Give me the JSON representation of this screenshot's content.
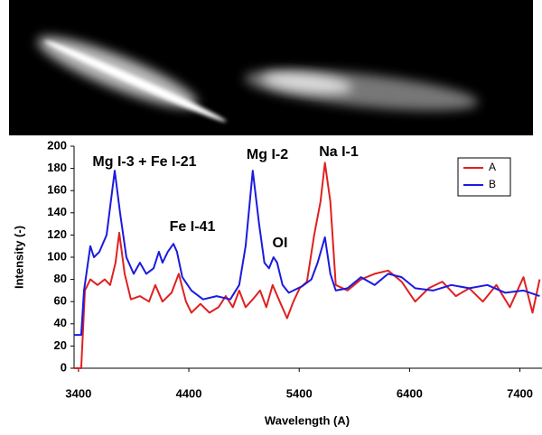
{
  "chart_data": {
    "type": "line",
    "x_label": "Wavelength (A)",
    "y_label": "Intensity (-)",
    "xlim": [
      3360,
      7600
    ],
    "xticks": [
      3400,
      4400,
      5400,
      6400,
      7400
    ],
    "ylim": [
      0,
      200
    ],
    "yticks": [
      0,
      20,
      40,
      60,
      80,
      100,
      120,
      140,
      160,
      180,
      200
    ],
    "annotations": [
      "Mg I-3 + Fe I-21",
      "Fe I-41",
      "Mg I-2",
      "OI",
      "Na I-1"
    ],
    "legend": "upper right",
    "series": [
      {
        "name": "A",
        "color": "#e02020",
        "x": [
          3360,
          3425,
          3458,
          3507,
          3573,
          3638,
          3687,
          3736,
          3769,
          3818,
          3875,
          3957,
          4039,
          4096,
          4161,
          4243,
          4309,
          4374,
          4423,
          4505,
          4587,
          4669,
          4734,
          4799,
          4856,
          4914,
          4979,
          5045,
          5102,
          5159,
          5224,
          5290,
          5347,
          5404,
          5470,
          5536,
          5593,
          5633,
          5682,
          5731,
          5838,
          5960,
          6083,
          6206,
          6328,
          6451,
          6573,
          6696,
          6819,
          6941,
          7064,
          7187,
          7309,
          7432,
          7514,
          7579
        ],
        "values": [
          0,
          0,
          70,
          80,
          75,
          80,
          75,
          95,
          122,
          85,
          62,
          65,
          60,
          75,
          60,
          68,
          85,
          60,
          50,
          58,
          50,
          55,
          65,
          55,
          70,
          55,
          62,
          70,
          55,
          75,
          60,
          45,
          60,
          72,
          78,
          120,
          150,
          185,
          150,
          75,
          70,
          80,
          85,
          88,
          78,
          60,
          72,
          78,
          65,
          72,
          60,
          75,
          55,
          82,
          50,
          80
        ]
      },
      {
        "name": "B",
        "color": "#1a1ae0",
        "x": [
          3360,
          3425,
          3450,
          3507,
          3540,
          3590,
          3655,
          3728,
          3777,
          3834,
          3900,
          3957,
          4014,
          4080,
          4129,
          4161,
          4210,
          4260,
          4292,
          4341,
          4423,
          4529,
          4652,
          4775,
          4856,
          4914,
          4979,
          5036,
          5085,
          5126,
          5167,
          5200,
          5249,
          5306,
          5429,
          5510,
          5567,
          5633,
          5682,
          5731,
          5838,
          5960,
          6083,
          6206,
          6328,
          6451,
          6614,
          6778,
          6941,
          7105,
          7268,
          7432,
          7579
        ],
        "values": [
          30,
          30,
          70,
          110,
          100,
          105,
          120,
          178,
          140,
          100,
          85,
          95,
          85,
          90,
          105,
          95,
          105,
          112,
          105,
          82,
          70,
          62,
          65,
          62,
          75,
          110,
          178,
          130,
          95,
          90,
          100,
          95,
          75,
          68,
          74,
          80,
          95,
          118,
          85,
          70,
          72,
          82,
          75,
          85,
          82,
          72,
          70,
          75,
          72,
          75,
          68,
          70,
          65
        ]
      }
    ]
  }
}
